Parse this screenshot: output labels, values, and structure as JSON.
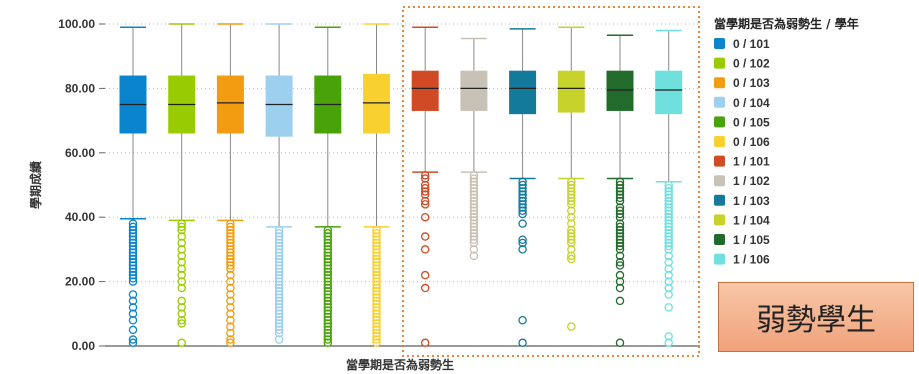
{
  "chart_data": {
    "type": "boxplot",
    "xlabel": "當學期是否為弱勢生",
    "ylabel": "學期成績",
    "ylim": [
      0,
      100
    ],
    "yticks": [
      "0.00",
      "20.00",
      "40.00",
      "60.00",
      "80.00",
      "100.00"
    ],
    "legend_title": "當學期是否為弱勢生 / 學年",
    "legend_position": "right",
    "grid": "dotted horizontal",
    "highlight_box": "dotted orange rectangle around groups 1/101 – 1/106",
    "series": [
      {
        "name": "0 / 101",
        "color": "#0a84cc",
        "min": 39.5,
        "q1": 66,
        "median": 75,
        "q3": 84,
        "max": 99,
        "outliers": [
          38,
          37,
          36,
          35,
          34,
          33,
          32,
          31,
          30,
          29,
          28,
          27,
          26,
          25,
          24,
          23,
          22,
          21,
          20,
          16,
          14,
          12,
          10,
          8,
          5,
          2,
          1
        ]
      },
      {
        "name": "0 / 102",
        "color": "#99cc00",
        "min": 39,
        "q1": 66,
        "median": 75,
        "q3": 84,
        "max": 100,
        "outliers": [
          38,
          37,
          36,
          34,
          32,
          30,
          28,
          26,
          24,
          22,
          20,
          18,
          14,
          12,
          10,
          8,
          7,
          1
        ]
      },
      {
        "name": "0 / 103",
        "color": "#f39c12",
        "min": 39,
        "q1": 66,
        "median": 75.5,
        "q3": 84,
        "max": 100,
        "outliers": [
          38,
          37,
          36,
          35,
          34,
          33,
          32,
          31,
          30,
          29,
          28,
          27,
          26,
          25,
          24,
          22,
          20,
          18,
          16,
          14,
          12,
          10,
          8,
          6,
          4,
          2,
          1
        ]
      },
      {
        "name": "0 / 104",
        "color": "#9dcfee",
        "min": 37,
        "q1": 65,
        "median": 75,
        "q3": 84,
        "max": 100,
        "outliers": [
          36,
          35,
          34,
          33,
          32,
          31,
          30,
          29,
          28,
          27,
          26,
          25,
          24,
          23,
          22,
          21,
          20,
          19,
          18,
          17,
          16,
          15,
          14,
          13,
          12,
          11,
          10,
          9,
          8,
          7,
          6,
          5,
          4,
          2
        ]
      },
      {
        "name": "0 / 105",
        "color": "#4aa20a",
        "min": 37,
        "q1": 66,
        "median": 75,
        "q3": 84,
        "max": 99,
        "outliers": [
          36,
          35,
          34,
          33,
          32,
          31,
          30,
          29,
          28,
          27,
          26,
          25,
          24,
          23,
          22,
          21,
          20,
          19,
          18,
          17,
          16,
          15,
          14,
          13,
          12,
          11,
          10,
          9,
          8,
          7,
          6,
          5,
          4,
          3,
          2,
          1
        ]
      },
      {
        "name": "0 / 106",
        "color": "#f8d030",
        "min": 37,
        "q1": 66,
        "median": 75.5,
        "q3": 84.5,
        "max": 100,
        "outliers": [
          36,
          35,
          34,
          33,
          32,
          31,
          30,
          29,
          28,
          27,
          26,
          25,
          24,
          23,
          22,
          21,
          20,
          19,
          18,
          17,
          16,
          15,
          14,
          13,
          12,
          11,
          10,
          9,
          8,
          7,
          6,
          5,
          4,
          3,
          2,
          1
        ]
      },
      {
        "name": "1 / 101",
        "color": "#d04a25",
        "min": 54,
        "q1": 73,
        "median": 80,
        "q3": 85.5,
        "max": 99,
        "outliers": [
          53,
          52,
          50,
          49,
          48,
          47,
          45,
          44,
          40,
          34,
          30,
          22,
          18,
          1
        ]
      },
      {
        "name": "1 / 102",
        "color": "#c8c2b6",
        "min": 54,
        "q1": 73,
        "median": 80,
        "q3": 85.5,
        "max": 95.5,
        "outliers": [
          53,
          52,
          51,
          50,
          49,
          48,
          47,
          46,
          45,
          44,
          43,
          42,
          41,
          40,
          39,
          38,
          37,
          36,
          35,
          34,
          33,
          32,
          30,
          28
        ]
      },
      {
        "name": "1 / 103",
        "color": "#137a9c",
        "min": 52,
        "q1": 72,
        "median": 80,
        "q3": 85.5,
        "max": 98.5,
        "outliers": [
          51,
          50,
          49,
          48,
          47,
          46,
          45,
          44,
          43,
          42,
          41,
          38,
          33,
          32,
          30,
          8,
          1
        ]
      },
      {
        "name": "1 / 104",
        "color": "#c7d22c",
        "min": 52,
        "q1": 72.5,
        "median": 80,
        "q3": 85.5,
        "max": 99,
        "outliers": [
          51,
          50,
          49,
          48,
          47,
          46,
          45,
          44,
          42,
          40,
          38,
          36,
          35,
          34,
          33,
          32,
          30,
          28,
          27,
          6
        ]
      },
      {
        "name": "1 / 105",
        "color": "#236b2c",
        "min": 52,
        "q1": 73,
        "median": 79.5,
        "q3": 85.5,
        "max": 96.5,
        "outliers": [
          51,
          50,
          49,
          48,
          47,
          46,
          45,
          43,
          42,
          41,
          40,
          38,
          37,
          36,
          35,
          34,
          33,
          32,
          31,
          30,
          28,
          26,
          25,
          22,
          20,
          18,
          14,
          1
        ]
      },
      {
        "name": "1 / 106",
        "color": "#6fe0de",
        "min": 51,
        "q1": 72,
        "median": 79.5,
        "q3": 85.5,
        "max": 98,
        "outliers": [
          50,
          49,
          48,
          47,
          46,
          45,
          44,
          43,
          42,
          41,
          40,
          39,
          38,
          37,
          36,
          35,
          34,
          33,
          32,
          31,
          30,
          28,
          26,
          24,
          22,
          20,
          18,
          16,
          12,
          3,
          1
        ]
      }
    ]
  },
  "callout": {
    "text": "弱勢學生"
  }
}
